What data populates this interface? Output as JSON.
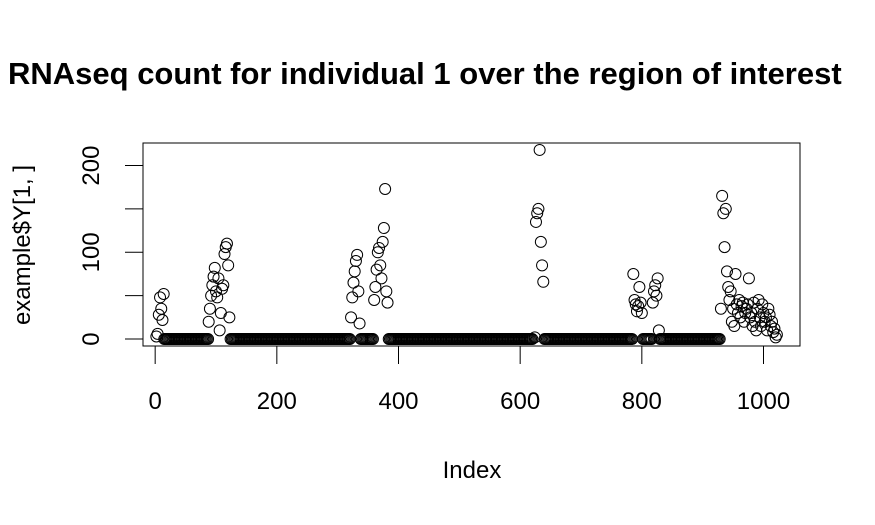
{
  "chart_data": {
    "type": "scatter",
    "title": "RNAseq count for individual 1 over the region of interest",
    "xlabel": "Index",
    "ylabel": "example$Y[1, ]",
    "xlim": [
      -20,
      1060
    ],
    "ylim": [
      -8,
      226
    ],
    "xticks": [
      0,
      200,
      400,
      600,
      800,
      1000
    ],
    "yticks": [
      0,
      50,
      100,
      150,
      200
    ],
    "yticklabels": [
      "0",
      "",
      "100",
      "",
      "200"
    ],
    "marker": "open-circle",
    "grid": false,
    "clusters": [
      {
        "x": [
          2,
          4,
          6,
          8,
          10,
          12,
          14
        ],
        "y": [
          3,
          6,
          28,
          48,
          35,
          22,
          52
        ]
      },
      {
        "x": [
          88,
          90,
          92,
          94,
          96,
          98,
          100,
          102,
          104,
          106,
          108,
          110,
          112,
          114,
          116,
          118,
          120,
          122
        ],
        "y": [
          20,
          35,
          50,
          62,
          72,
          82,
          55,
          48,
          70,
          10,
          30,
          58,
          62,
          98,
          106,
          110,
          85,
          25
        ]
      },
      {
        "x": [
          322,
          324,
          326,
          328,
          330,
          332,
          334,
          336
        ],
        "y": [
          25,
          48,
          65,
          78,
          90,
          97,
          55,
          18
        ]
      },
      {
        "x": [
          360,
          362,
          364,
          366,
          368,
          370,
          372,
          374,
          376,
          378,
          380,
          382
        ],
        "y": [
          45,
          60,
          80,
          100,
          105,
          85,
          70,
          112,
          128,
          173,
          55,
          42
        ]
      },
      {
        "x": [
          624,
          626,
          628,
          630,
          632,
          634,
          636
        ],
        "y": [
          2,
          135,
          145,
          150,
          218,
          112,
          85
        ]
      },
      {
        "x": [
          638
        ],
        "y": [
          66
        ]
      },
      {
        "x": [
          786,
          788,
          790,
          792,
          794,
          796,
          798,
          800
        ],
        "y": [
          75,
          45,
          40,
          32,
          38,
          60,
          42,
          30
        ]
      },
      {
        "x": [
          818,
          820,
          822,
          824,
          826,
          828
        ],
        "y": [
          42,
          55,
          62,
          50,
          70,
          10
        ]
      },
      {
        "x": [
          930,
          932,
          934,
          936,
          938,
          940,
          942,
          944,
          946,
          948,
          950,
          952,
          954,
          956,
          958,
          960,
          962,
          964,
          966,
          968,
          970,
          972,
          974,
          976,
          978,
          980,
          982,
          984,
          986,
          988,
          990,
          992,
          994,
          996,
          998,
          1000,
          1002,
          1004,
          1006,
          1008,
          1010,
          1012,
          1014,
          1016,
          1018,
          1020,
          1022
        ],
        "y": [
          35,
          165,
          145,
          106,
          150,
          78,
          60,
          45,
          55,
          20,
          35,
          15,
          75,
          40,
          30,
          45,
          25,
          38,
          42,
          20,
          30,
          35,
          40,
          70,
          25,
          30,
          15,
          42,
          20,
          10,
          35,
          45,
          25,
          15,
          40,
          30,
          20,
          25,
          10,
          35,
          28,
          15,
          20,
          8,
          12,
          2,
          5
        ]
      }
    ],
    "zero_baseline": {
      "x_ranges": [
        [
          15,
          87
        ],
        [
          124,
          320
        ],
        [
          338,
          358
        ],
        [
          384,
          620
        ],
        [
          640,
          785
        ],
        [
          802,
          816
        ],
        [
          830,
          928
        ]
      ],
      "y": 0
    }
  }
}
